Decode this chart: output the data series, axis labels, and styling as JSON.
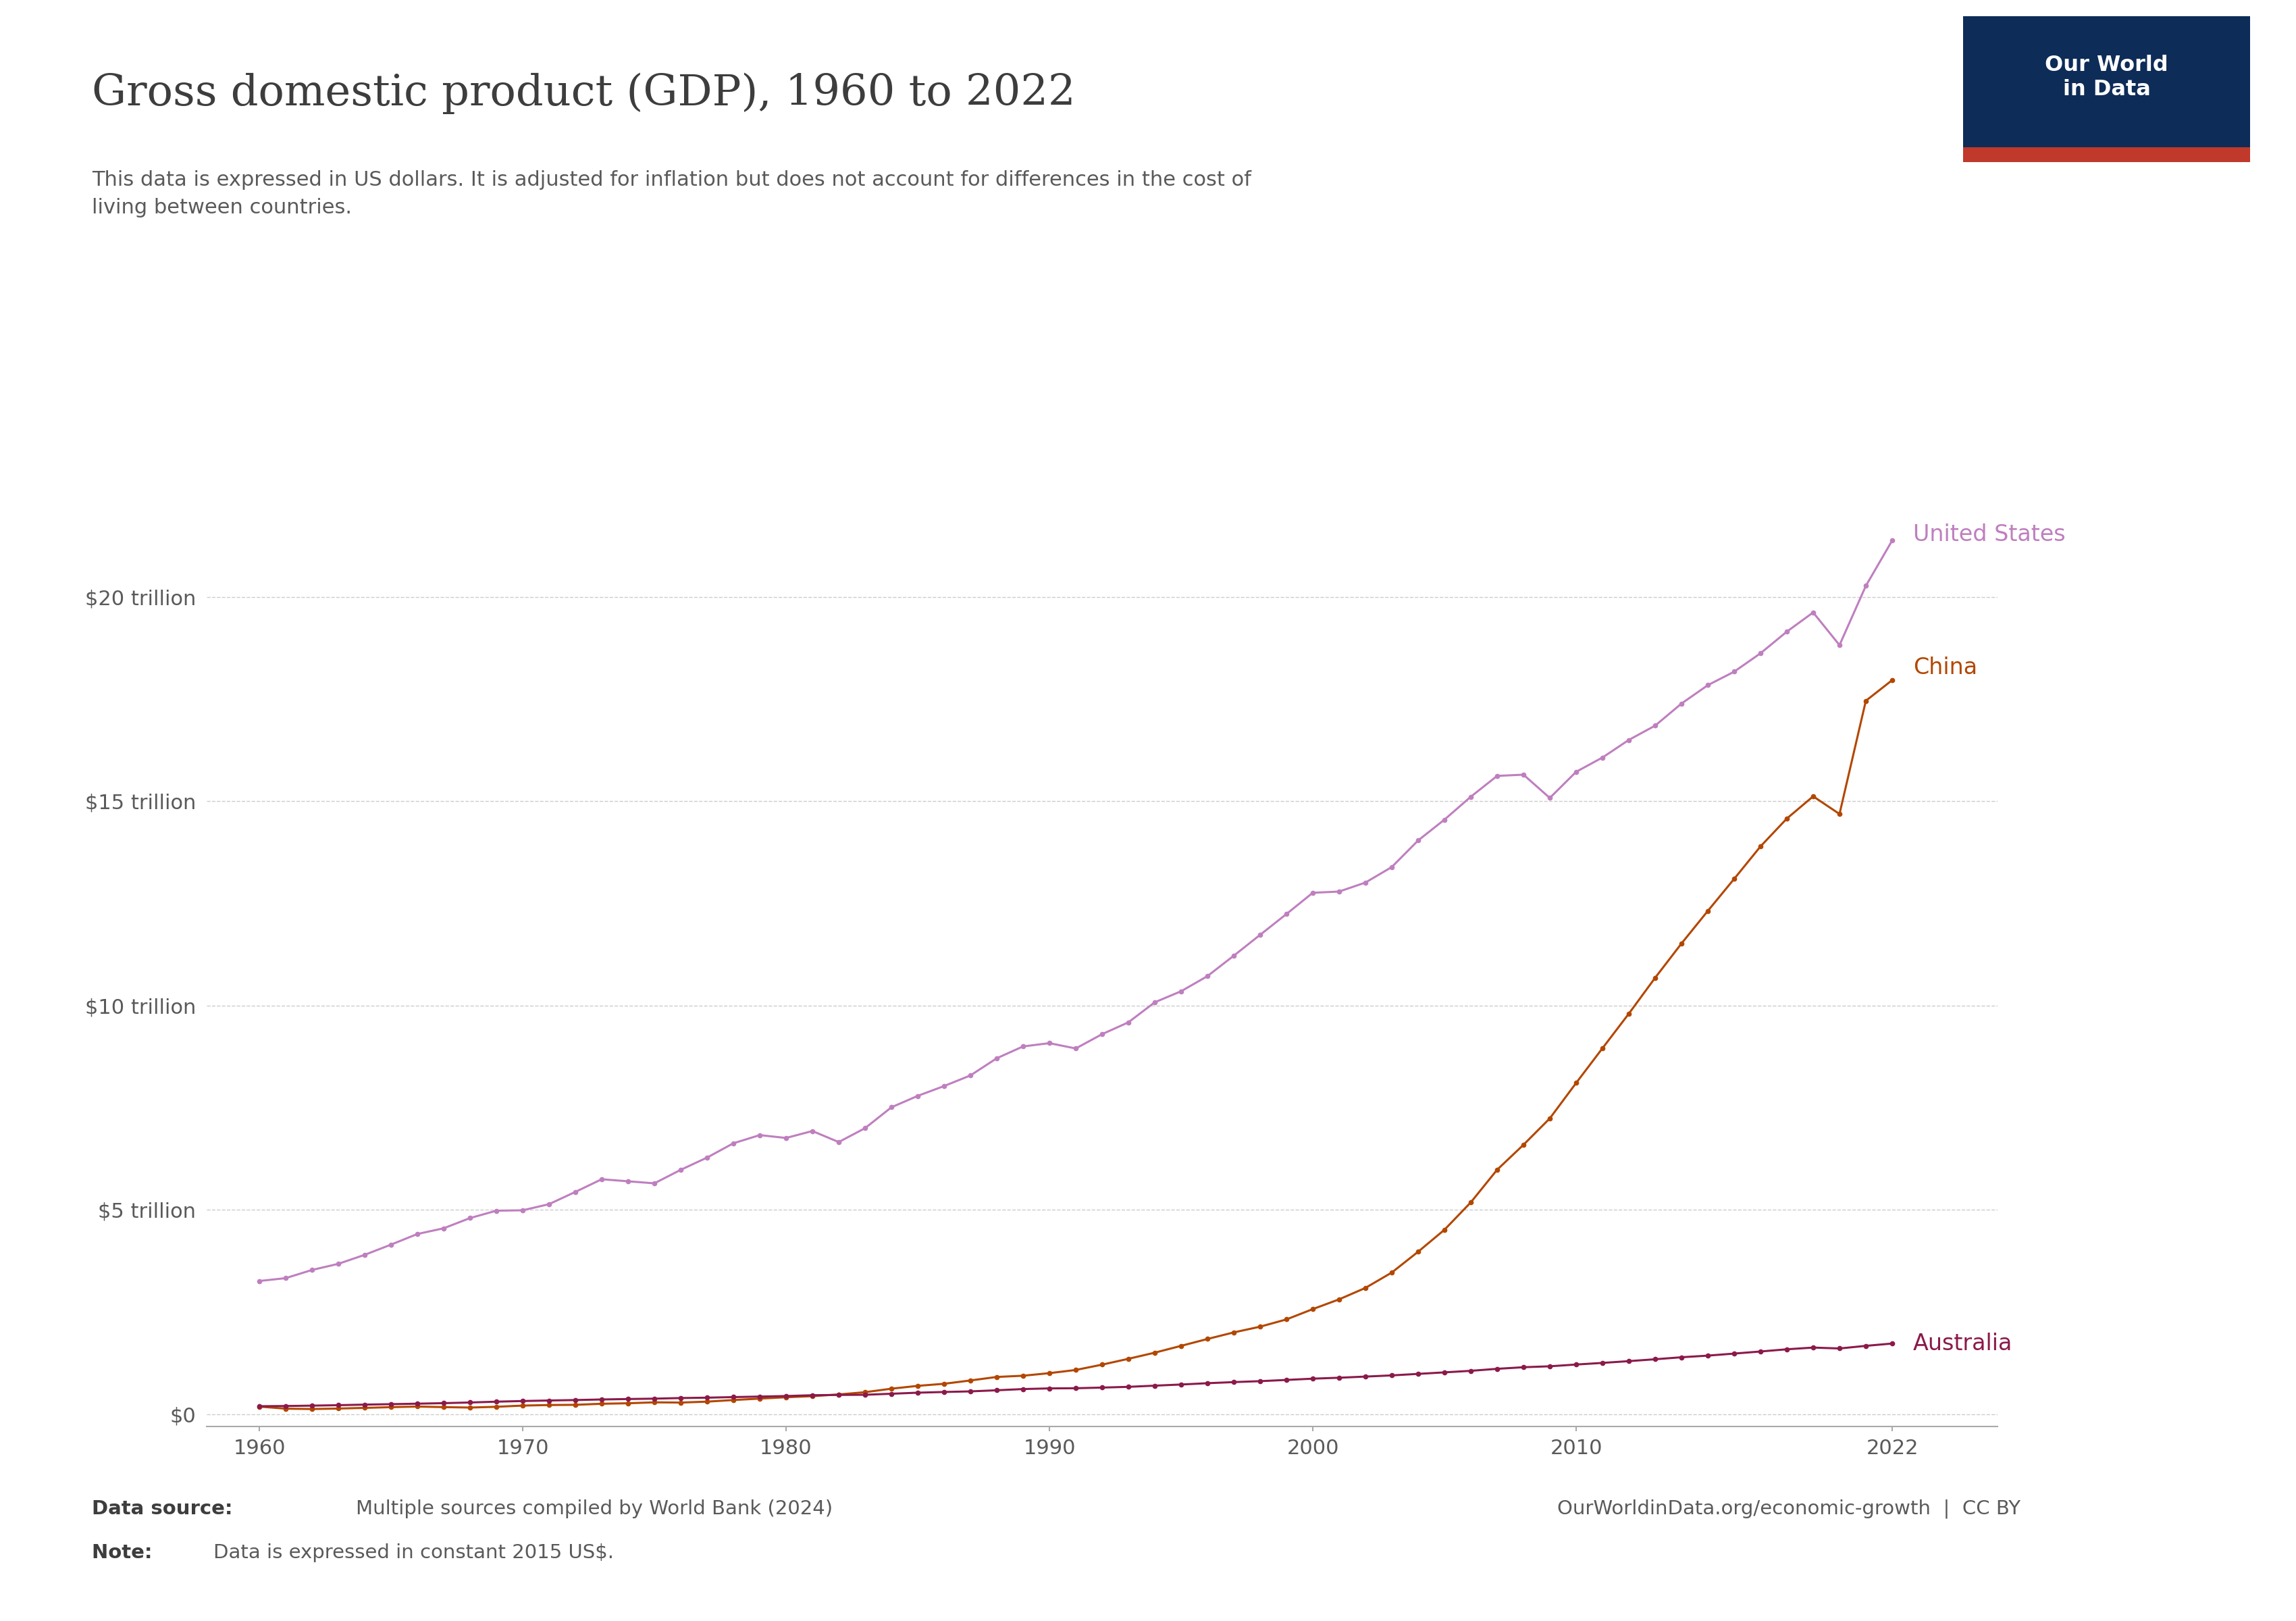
{
  "title": "Gross domestic product (GDP), 1960 to 2022",
  "subtitle": "This data is expressed in US dollars. It is adjusted for inflation but does not account for differences in the cost of\nliving between countries.",
  "data_source_bold": "Data source: ",
  "data_source_normal": "Multiple sources compiled by World Bank (2024)",
  "note_bold": "Note: ",
  "note_normal": "Data is expressed in constant 2015 US$.",
  "website": "OurWorldinData.org/economic-growth  |  CC BY",
  "background_color": "#ffffff",
  "title_color": "#3d3d3d",
  "subtitle_color": "#5a5a5a",
  "grid_color": "#cccccc",
  "logo_bg": "#0d2c57",
  "logo_accent": "#c0392b",
  "xlim": [
    1958,
    2026
  ],
  "ylim": [
    -300000000000.0,
    23500000000000.0
  ],
  "yticks": [
    0,
    5000000000000.0,
    10000000000000.0,
    15000000000000.0,
    20000000000000.0
  ],
  "ytick_labels": [
    "$0",
    "$5 trillion",
    "$10 trillion",
    "$15 trillion",
    "$20 trillion"
  ],
  "xticks": [
    1960,
    1970,
    1980,
    1990,
    2000,
    2010,
    2022
  ],
  "colors": {
    "United States": "#bf7fbf",
    "China": "#b34700",
    "Australia": "#8b1a4a"
  },
  "us_gdp_years": [
    1960,
    1961,
    1962,
    1963,
    1964,
    1965,
    1966,
    1967,
    1968,
    1969,
    1970,
    1971,
    1972,
    1973,
    1974,
    1975,
    1976,
    1977,
    1978,
    1979,
    1980,
    1981,
    1982,
    1983,
    1984,
    1985,
    1986,
    1987,
    1988,
    1989,
    1990,
    1991,
    1992,
    1993,
    1994,
    1995,
    1996,
    1997,
    1998,
    1999,
    2000,
    2001,
    2002,
    2003,
    2004,
    2005,
    2006,
    2007,
    2008,
    2009,
    2010,
    2011,
    2012,
    2013,
    2014,
    2015,
    2016,
    2017,
    2018,
    2019,
    2020,
    2021,
    2022
  ],
  "us_gdp_vals": [
    3260000000000.0,
    3330000000000.0,
    3530000000000.0,
    3680000000000.0,
    3900000000000.0,
    4150000000000.0,
    4410000000000.0,
    4550000000000.0,
    4800000000000.0,
    4980000000000.0,
    4990000000000.0,
    5140000000000.0,
    5440000000000.0,
    5750000000000.0,
    5700000000000.0,
    5650000000000.0,
    5980000000000.0,
    6280000000000.0,
    6630000000000.0,
    6830000000000.0,
    6760000000000.0,
    6930000000000.0,
    6660000000000.0,
    7000000000000.0,
    7510000000000.0,
    7790000000000.0,
    8030000000000.0,
    8290000000000.0,
    8710000000000.0,
    9000000000000.0,
    9080000000000.0,
    8950000000000.0,
    9300000000000.0,
    9590000000000.0,
    10080000000000.0,
    10350000000000.0,
    10720000000000.0,
    11220000000000.0,
    11730000000000.0,
    12240000000000.0,
    12760000000000.0,
    12790000000000.0,
    13010000000000.0,
    13390000000000.0,
    14040000000000.0,
    14550000000000.0,
    15110000000000.0,
    15620000000000.0,
    15650000000000.0,
    15080000000000.0,
    15720000000000.0,
    16070000000000.0,
    16500000000000.0,
    16850000000000.0,
    17390000000000.0,
    17840000000000.0,
    18170000000000.0,
    18620000000000.0,
    19150000000000.0,
    19620000000000.0,
    18820000000000.0,
    20270000000000.0,
    21380000000000.0
  ],
  "china_gdp_years": [
    1960,
    1961,
    1962,
    1963,
    1964,
    1965,
    1966,
    1967,
    1968,
    1969,
    1970,
    1971,
    1972,
    1973,
    1974,
    1975,
    1976,
    1977,
    1978,
    1979,
    1980,
    1981,
    1982,
    1983,
    1984,
    1985,
    1986,
    1987,
    1988,
    1989,
    1990,
    1991,
    1992,
    1993,
    1994,
    1995,
    1996,
    1997,
    1998,
    1999,
    2000,
    2001,
    2002,
    2003,
    2004,
    2005,
    2006,
    2007,
    2008,
    2009,
    2010,
    2011,
    2012,
    2013,
    2014,
    2015,
    2016,
    2017,
    2018,
    2019,
    2020,
    2021,
    2022
  ],
  "china_gdp_vals": [
    186000000000.0,
    136000000000.0,
    127000000000.0,
    139000000000.0,
    155000000000.0,
    173000000000.0,
    188000000000.0,
    174000000000.0,
    163000000000.0,
    182000000000.0,
    211000000000.0,
    225000000000.0,
    230000000000.0,
    256000000000.0,
    268000000000.0,
    291000000000.0,
    285000000000.0,
    308000000000.0,
    347000000000.0,
    382000000000.0,
    415000000000.0,
    442000000000.0,
    484000000000.0,
    539000000000.0,
    625000000000.0,
    694000000000.0,
    745000000000.0,
    826000000000.0,
    912000000000.0,
    942000000000.0,
    1005000000000.0,
    1083000000000.0,
    1213000000000.0,
    1356000000000.0,
    1506000000000.0,
    1673000000000.0,
    1841000000000.0,
    2002000000000.0,
    2142000000000.0,
    2320000000000.0,
    2572000000000.0,
    2811000000000.0,
    3091000000000.0,
    3467000000000.0,
    3976000000000.0,
    4514000000000.0,
    5184000000000.0,
    5982000000000.0,
    6593000000000.0,
    7239000000000.0,
    8106000000000.0,
    8956000000000.0,
    9801000000000.0,
    10680000000000.0,
    11519000000000.0,
    12316000000000.0,
    13100000000000.0,
    13894000000000.0,
    14576000000000.0,
    15120000000000.0,
    14688000000000.0,
    17458000000000.0,
    17963000000000.0
  ],
  "australia_gdp_years": [
    1960,
    1961,
    1962,
    1963,
    1964,
    1965,
    1966,
    1967,
    1968,
    1969,
    1970,
    1971,
    1972,
    1973,
    1974,
    1975,
    1976,
    1977,
    1978,
    1979,
    1980,
    1981,
    1982,
    1983,
    1984,
    1985,
    1986,
    1987,
    1988,
    1989,
    1990,
    1991,
    1992,
    1993,
    1994,
    1995,
    1996,
    1997,
    1998,
    1999,
    2000,
    2001,
    2002,
    2003,
    2004,
    2005,
    2006,
    2007,
    2008,
    2009,
    2010,
    2011,
    2012,
    2013,
    2014,
    2015,
    2016,
    2017,
    2018,
    2019,
    2020,
    2021,
    2022
  ],
  "australia_gdp_vals": [
    196000000000.0,
    201000000000.0,
    210000000000.0,
    221000000000.0,
    235000000000.0,
    246000000000.0,
    258000000000.0,
    271000000000.0,
    287000000000.0,
    307000000000.0,
    323000000000.0,
    336000000000.0,
    347000000000.0,
    361000000000.0,
    372000000000.0,
    381000000000.0,
    396000000000.0,
    405000000000.0,
    419000000000.0,
    432000000000.0,
    445000000000.0,
    465000000000.0,
    472000000000.0,
    476000000000.0,
    501000000000.0,
    527000000000.0,
    544000000000.0,
    559000000000.0,
    586000000000.0,
    616000000000.0,
    632000000000.0,
    636000000000.0,
    652000000000.0,
    670000000000.0,
    699000000000.0,
    727000000000.0,
    759000000000.0,
    786000000000.0,
    809000000000.0,
    839000000000.0,
    870000000000.0,
    893000000000.0,
    921000000000.0,
    950000000000.0,
    987000000000.0,
    1024000000000.0,
    1062000000000.0,
    1111000000000.0,
    1150000000000.0,
    1173000000000.0,
    1216000000000.0,
    1256000000000.0,
    1299000000000.0,
    1345000000000.0,
    1394000000000.0,
    1434000000000.0,
    1484000000000.0,
    1535000000000.0,
    1589000000000.0,
    1631000000000.0,
    1609000000000.0,
    1673000000000.0,
    1730000000000.0
  ]
}
